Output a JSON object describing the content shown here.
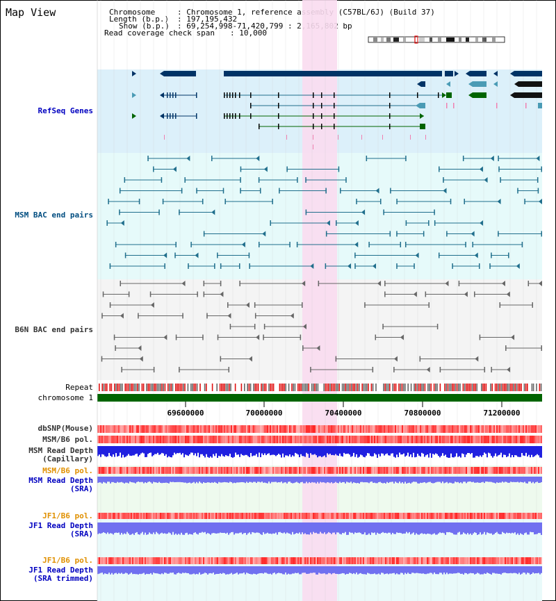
{
  "title": "Map View",
  "header": {
    "chromosome_key": "Chromosome",
    "chromosome_value": ": Chromosome 1, reference assembly (C57BL/6J) (Build 37)",
    "length_key": "Length (b.p.)",
    "length_value": ": 197,195,432",
    "show_key": "Show (b.p.)",
    "show_value": ": 69,254,998-71,420,799 : 2,165,802 bp",
    "coverage_key": "Read coverage check span",
    "coverage_value": ": 10,000"
  },
  "tracks": {
    "refseq": "RefSeq Genes",
    "msm_bac": "MSM BAC end pairs",
    "b6n_bac": "B6N BAC end pairs",
    "repeat": "Repeat",
    "chromosome": "chromosome 1",
    "dbsnp": "dbSNP(Mouse)",
    "msm_b6_pol": "MSM/B6 pol.",
    "msm_read_depth_cap": "MSM Read Depth\n(Capillary)",
    "msm_b6_pol2": "MSM/B6 pol.",
    "msm_read_depth_sra": "MSM Read Depth\n(SRA)",
    "jf1_b6_pol": "JF1/B6 pol.",
    "jf1_read_depth_sra": "JF1 Read Depth\n(SRA)",
    "jf1_b6_pol2": "JF1/B6 pol.",
    "jf1_read_depth_trim": "JF1 Read Depth\n(SRA trimmed)"
  },
  "axis": {
    "ticks": [
      "69600000",
      "70000000",
      "70400000",
      "70800000",
      "71200000"
    ]
  },
  "colors": {
    "refseq_bg": "#dcf0fa",
    "bac_msm_bg": "#e6fafa",
    "bac_b6n_bg": "#f4f4f4",
    "highlight": "#fadcf0",
    "chromosome_bar": "#006400",
    "gene_dark": "#003366",
    "gene_green": "#006400",
    "gene_teal": "#4a9bb5",
    "msm_pair": "#1f6e8c",
    "b6n_pair": "#666666",
    "depth_blue": "#2020e0",
    "depth_lightblue": "#7070f0"
  }
}
